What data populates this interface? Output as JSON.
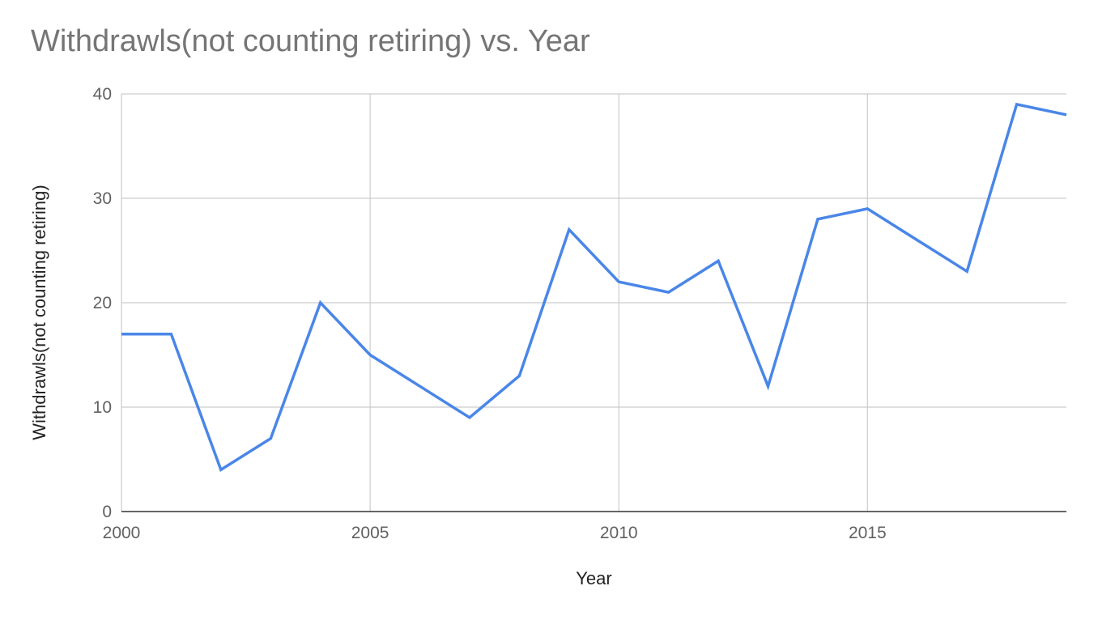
{
  "chart_data": {
    "type": "line",
    "title": "Withdrawls(not counting retiring) vs. Year",
    "xlabel": "Year",
    "ylabel": "Withdrawls(not counting retiring)",
    "xlim": [
      2000,
      2019
    ],
    "ylim": [
      0,
      40
    ],
    "x_ticks": [
      2000,
      2005,
      2010,
      2015
    ],
    "y_ticks": [
      0,
      10,
      20,
      30,
      40
    ],
    "grid": true,
    "legend": "none",
    "series": [
      {
        "color": "#4a86e8",
        "x": [
          2000,
          2001,
          2002,
          2003,
          2004,
          2005,
          2006,
          2007,
          2008,
          2009,
          2010,
          2011,
          2012,
          2013,
          2014,
          2015,
          2016,
          2017,
          2018,
          2019
        ],
        "values": [
          17,
          17,
          4,
          7,
          20,
          15,
          12,
          9,
          13,
          27,
          22,
          21,
          24,
          12,
          28,
          29,
          26,
          23,
          39,
          38
        ]
      }
    ],
    "colors": {
      "line": "#4a86e8",
      "grid": "#cccccc",
      "axis": "#333333",
      "title": "#757575"
    }
  }
}
